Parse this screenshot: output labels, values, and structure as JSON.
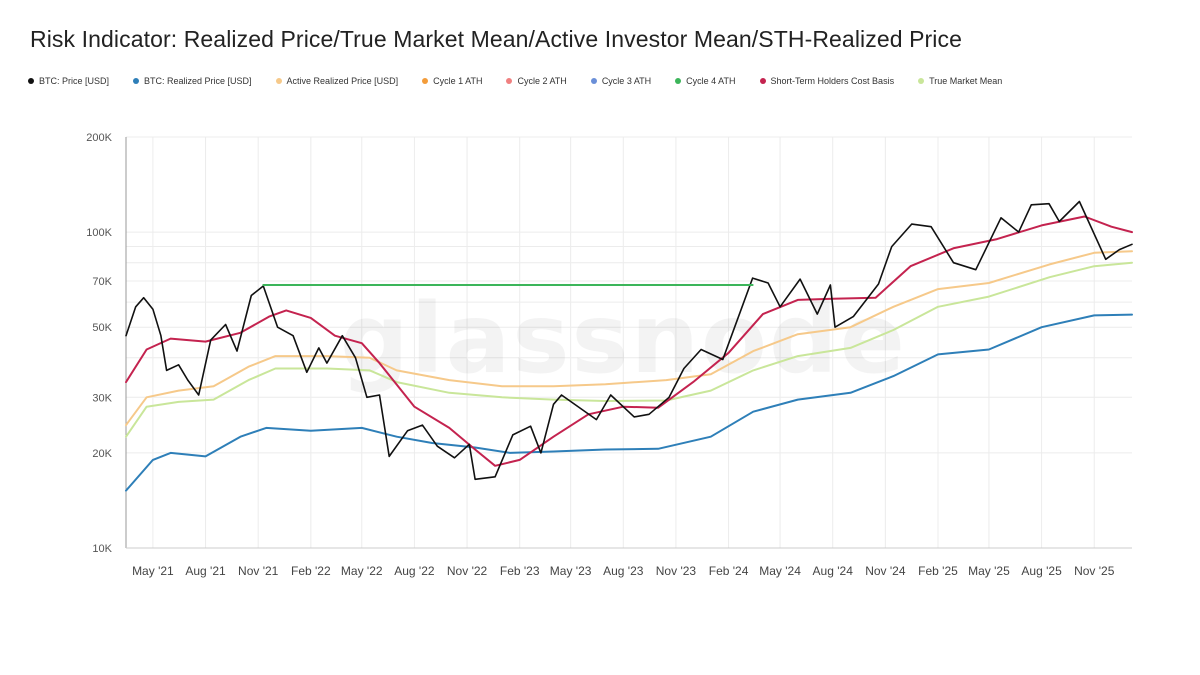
{
  "chart_data": {
    "type": "line",
    "title": "Risk Indicator: Realized Price/True Market Mean/Active Investor Mean/STH-Realized Price",
    "watermark": "glassnode",
    "y_scale": "log",
    "ylim": [
      10000,
      200000
    ],
    "y_ticks": [
      {
        "value": 10000,
        "label": "10K"
      },
      {
        "value": 20000,
        "label": "20K"
      },
      {
        "value": 30000,
        "label": "30K"
      },
      {
        "value": 50000,
        "label": "50K"
      },
      {
        "value": 70000,
        "label": "70K"
      },
      {
        "value": 100000,
        "label": "100K"
      },
      {
        "value": 200000,
        "label": "200K"
      }
    ],
    "x_start": "2021-03-15",
    "x_end": "2026-01-06",
    "x_ticks": [
      {
        "date": "2021-05-01",
        "label": "May '21"
      },
      {
        "date": "2021-08-01",
        "label": "Aug '21"
      },
      {
        "date": "2021-11-01",
        "label": "Nov '21"
      },
      {
        "date": "2022-02-01",
        "label": "Feb '22"
      },
      {
        "date": "2022-05-01",
        "label": "May '22"
      },
      {
        "date": "2022-08-01",
        "label": "Aug '22"
      },
      {
        "date": "2022-11-01",
        "label": "Nov '22"
      },
      {
        "date": "2023-02-01",
        "label": "Feb '23"
      },
      {
        "date": "2023-05-01",
        "label": "May '23"
      },
      {
        "date": "2023-08-01",
        "label": "Aug '23"
      },
      {
        "date": "2023-11-01",
        "label": "Nov '23"
      },
      {
        "date": "2024-02-01",
        "label": "Feb '24"
      },
      {
        "date": "2024-05-01",
        "label": "May '24"
      },
      {
        "date": "2024-08-01",
        "label": "Aug '24"
      },
      {
        "date": "2024-11-01",
        "label": "Nov '24"
      },
      {
        "date": "2025-02-01",
        "label": "Feb '25"
      },
      {
        "date": "2025-05-01",
        "label": "May '25"
      },
      {
        "date": "2025-08-01",
        "label": "Aug '25"
      },
      {
        "date": "2025-11-01",
        "label": "Nov '25"
      }
    ],
    "grid": true,
    "legend_position": "top",
    "series": [
      {
        "name": "True Market Mean",
        "color": "#c9e69a",
        "width": 2,
        "points": [
          [
            "2021-03-15",
            22500
          ],
          [
            "2021-04-20",
            28000
          ],
          [
            "2021-06-15",
            29000
          ],
          [
            "2021-08-15",
            29500
          ],
          [
            "2021-10-15",
            34000
          ],
          [
            "2021-12-01",
            37000
          ],
          [
            "2022-03-01",
            37000
          ],
          [
            "2022-05-15",
            36500
          ],
          [
            "2022-07-01",
            33500
          ],
          [
            "2022-10-01",
            31000
          ],
          [
            "2023-01-01",
            30000
          ],
          [
            "2023-04-01",
            29500
          ],
          [
            "2023-07-01",
            29200
          ],
          [
            "2023-10-15",
            29300
          ],
          [
            "2024-01-01",
            31500
          ],
          [
            "2024-03-15",
            36500
          ],
          [
            "2024-06-01",
            40500
          ],
          [
            "2024-09-01",
            43000
          ],
          [
            "2024-11-15",
            49000
          ],
          [
            "2025-02-01",
            58000
          ],
          [
            "2025-05-01",
            62500
          ],
          [
            "2025-08-15",
            72000
          ],
          [
            "2025-11-01",
            78000
          ],
          [
            "2026-01-06",
            80000
          ]
        ]
      },
      {
        "name": "Active Realized Price [USD]",
        "color": "#f6c98a",
        "width": 2,
        "points": [
          [
            "2021-03-15",
            24500
          ],
          [
            "2021-04-20",
            30000
          ],
          [
            "2021-06-15",
            31500
          ],
          [
            "2021-08-15",
            32500
          ],
          [
            "2021-10-15",
            37500
          ],
          [
            "2021-12-01",
            40500
          ],
          [
            "2022-03-01",
            40500
          ],
          [
            "2022-05-15",
            40000
          ],
          [
            "2022-07-01",
            36500
          ],
          [
            "2022-10-01",
            34000
          ],
          [
            "2023-01-01",
            32500
          ],
          [
            "2023-04-01",
            32500
          ],
          [
            "2023-07-01",
            33000
          ],
          [
            "2023-10-15",
            34000
          ],
          [
            "2024-01-01",
            35500
          ],
          [
            "2024-03-15",
            42000
          ],
          [
            "2024-06-01",
            47500
          ],
          [
            "2024-09-01",
            50000
          ],
          [
            "2024-11-15",
            58000
          ],
          [
            "2025-02-01",
            66000
          ],
          [
            "2025-05-01",
            69000
          ],
          [
            "2025-08-15",
            79000
          ],
          [
            "2025-11-01",
            86000
          ],
          [
            "2026-01-06",
            87000
          ]
        ]
      },
      {
        "name": "BTC: Realized Price [USD]",
        "color": "#2e7fb8",
        "width": 2,
        "points": [
          [
            "2021-03-15",
            15200
          ],
          [
            "2021-05-01",
            19000
          ],
          [
            "2021-06-01",
            20000
          ],
          [
            "2021-08-01",
            19500
          ],
          [
            "2021-10-01",
            22500
          ],
          [
            "2021-11-15",
            24000
          ],
          [
            "2022-02-01",
            23500
          ],
          [
            "2022-05-01",
            24000
          ],
          [
            "2022-07-01",
            22500
          ],
          [
            "2022-09-01",
            21500
          ],
          [
            "2022-11-15",
            20800
          ],
          [
            "2023-01-15",
            20000
          ],
          [
            "2023-04-01",
            20200
          ],
          [
            "2023-07-01",
            20500
          ],
          [
            "2023-10-01",
            20600
          ],
          [
            "2024-01-01",
            22500
          ],
          [
            "2024-03-15",
            27000
          ],
          [
            "2024-06-01",
            29500
          ],
          [
            "2024-09-01",
            31000
          ],
          [
            "2024-11-15",
            35000
          ],
          [
            "2025-02-01",
            41000
          ],
          [
            "2025-05-01",
            42500
          ],
          [
            "2025-08-01",
            50000
          ],
          [
            "2025-11-01",
            54500
          ],
          [
            "2026-01-06",
            54800
          ]
        ]
      },
      {
        "name": "Short-Term Holders Cost Basis",
        "color": "#c4234f",
        "width": 2,
        "points": [
          [
            "2021-03-15",
            33500
          ],
          [
            "2021-04-20",
            42500
          ],
          [
            "2021-06-01",
            46000
          ],
          [
            "2021-08-01",
            45000
          ],
          [
            "2021-10-01",
            48000
          ],
          [
            "2021-11-20",
            54000
          ],
          [
            "2021-12-20",
            56500
          ],
          [
            "2022-02-01",
            53500
          ],
          [
            "2022-03-15",
            47000
          ],
          [
            "2022-05-01",
            44500
          ],
          [
            "2022-06-01",
            38500
          ],
          [
            "2022-08-01",
            28000
          ],
          [
            "2022-10-01",
            24000
          ],
          [
            "2022-11-15",
            20500
          ],
          [
            "2022-12-20",
            18200
          ],
          [
            "2023-02-01",
            19000
          ],
          [
            "2023-04-01",
            22500
          ],
          [
            "2023-06-01",
            26500
          ],
          [
            "2023-08-01",
            28000
          ],
          [
            "2023-10-01",
            27800
          ],
          [
            "2023-12-01",
            33500
          ],
          [
            "2024-02-01",
            41500
          ],
          [
            "2024-04-01",
            55000
          ],
          [
            "2024-06-01",
            61000
          ],
          [
            "2024-08-01",
            61500
          ],
          [
            "2024-10-15",
            62000
          ],
          [
            "2024-12-15",
            78000
          ],
          [
            "2025-03-01",
            89000
          ],
          [
            "2025-05-15",
            95000
          ],
          [
            "2025-08-01",
            105000
          ],
          [
            "2025-10-15",
            112000
          ],
          [
            "2025-12-01",
            104000
          ],
          [
            "2026-01-06",
            100000
          ]
        ]
      },
      {
        "name": "BTC: Price [USD]",
        "color": "#111111",
        "width": 1.6,
        "points": [
          [
            "2021-03-15",
            47000
          ],
          [
            "2021-04-01",
            58000
          ],
          [
            "2021-04-15",
            62000
          ],
          [
            "2021-05-01",
            57000
          ],
          [
            "2021-05-15",
            47000
          ],
          [
            "2021-05-25",
            36500
          ],
          [
            "2021-06-15",
            38000
          ],
          [
            "2021-07-01",
            34000
          ],
          [
            "2021-07-20",
            30500
          ],
          [
            "2021-08-10",
            45500
          ],
          [
            "2021-09-05",
            51000
          ],
          [
            "2021-09-25",
            42000
          ],
          [
            "2021-10-20",
            63000
          ],
          [
            "2021-11-10",
            67500
          ],
          [
            "2021-12-05",
            50000
          ],
          [
            "2022-01-01",
            47000
          ],
          [
            "2022-01-25",
            36000
          ],
          [
            "2022-02-15",
            43000
          ],
          [
            "2022-03-01",
            38500
          ],
          [
            "2022-03-28",
            47000
          ],
          [
            "2022-04-20",
            40000
          ],
          [
            "2022-05-10",
            30000
          ],
          [
            "2022-06-01",
            30500
          ],
          [
            "2022-06-18",
            19500
          ],
          [
            "2022-07-20",
            23500
          ],
          [
            "2022-08-15",
            24500
          ],
          [
            "2022-09-10",
            21000
          ],
          [
            "2022-10-10",
            19300
          ],
          [
            "2022-11-05",
            21300
          ],
          [
            "2022-11-15",
            16500
          ],
          [
            "2022-12-20",
            16800
          ],
          [
            "2023-01-20",
            22800
          ],
          [
            "2023-02-20",
            24300
          ],
          [
            "2023-03-10",
            20000
          ],
          [
            "2023-04-01",
            28500
          ],
          [
            "2023-04-15",
            30500
          ],
          [
            "2023-06-15",
            25500
          ],
          [
            "2023-07-10",
            30500
          ],
          [
            "2023-08-20",
            26000
          ],
          [
            "2023-09-15",
            26500
          ],
          [
            "2023-10-20",
            30000
          ],
          [
            "2023-11-15",
            37000
          ],
          [
            "2023-12-15",
            42500
          ],
          [
            "2024-01-22",
            39500
          ],
          [
            "2024-02-15",
            52000
          ],
          [
            "2024-03-14",
            71500
          ],
          [
            "2024-04-10",
            69000
          ],
          [
            "2024-05-01",
            58000
          ],
          [
            "2024-06-05",
            71000
          ],
          [
            "2024-07-05",
            55000
          ],
          [
            "2024-07-28",
            68000
          ],
          [
            "2024-08-05",
            50000
          ],
          [
            "2024-09-06",
            54000
          ],
          [
            "2024-10-20",
            68500
          ],
          [
            "2024-11-12",
            90000
          ],
          [
            "2024-12-17",
            106000
          ],
          [
            "2025-01-20",
            104000
          ],
          [
            "2025-02-28",
            80000
          ],
          [
            "2025-04-08",
            76000
          ],
          [
            "2025-05-22",
            111000
          ],
          [
            "2025-06-22",
            100000
          ],
          [
            "2025-07-14",
            122000
          ],
          [
            "2025-08-14",
            123000
          ],
          [
            "2025-09-01",
            108000
          ],
          [
            "2025-10-06",
            125000
          ],
          [
            "2025-11-21",
            82000
          ],
          [
            "2025-12-15",
            88000
          ],
          [
            "2026-01-06",
            91500
          ]
        ]
      },
      {
        "name": "Cycle 4 ATH",
        "color": "#3cb55a",
        "width": 2,
        "points": [
          [
            "2021-11-10",
            68000
          ],
          [
            "2024-03-14",
            68000
          ]
        ]
      }
    ],
    "legend": [
      {
        "label": "BTC: Price [USD]",
        "color": "#111111"
      },
      {
        "label": "BTC: Realized Price [USD]",
        "color": "#2e7fb8"
      },
      {
        "label": "Active Realized Price [USD]",
        "color": "#f6c98a"
      },
      {
        "label": "Cycle 1 ATH",
        "color": "#f39c3a"
      },
      {
        "label": "Cycle 2 ATH",
        "color": "#f08080"
      },
      {
        "label": "Cycle 3 ATH",
        "color": "#6a8fd8"
      },
      {
        "label": "Cycle 4 ATH",
        "color": "#3cb55a"
      },
      {
        "label": "Short-Term Holders Cost Basis",
        "color": "#c4234f"
      },
      {
        "label": "True Market Mean",
        "color": "#c9e69a"
      }
    ]
  }
}
